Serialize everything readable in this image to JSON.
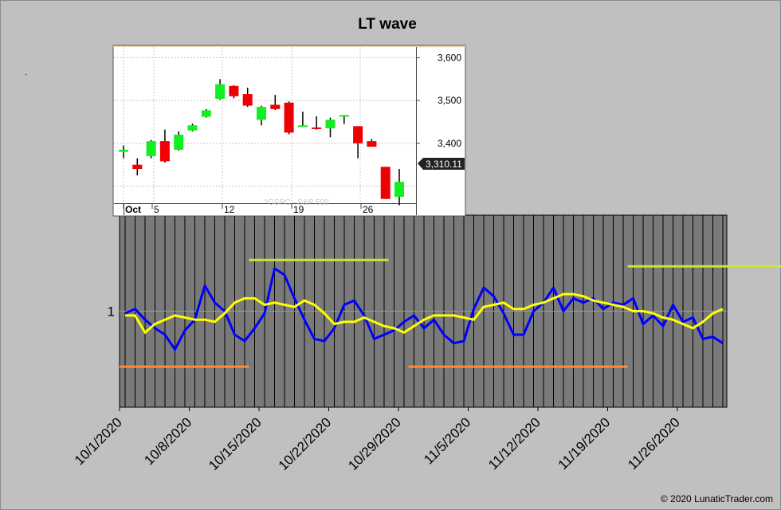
{
  "title": "LT wave",
  "copyright": "© 2020 LunaticTrader.com",
  "colors": {
    "background": "#c0c0c0",
    "plot_bg": "#7a7a7a",
    "wave": "#0000ff",
    "signal": "#ffff00",
    "upper_band": "#c8e632",
    "lower_band": "#ff8c32",
    "candle_up": "#11ee22",
    "candle_down": "#ee0000"
  },
  "chart_data": [
    {
      "type": "line",
      "title": "LT wave",
      "x_tick_labels": [
        "10/1/2020",
        "10/8/2020",
        "10/15/2020",
        "10/22/2020",
        "10/29/2020",
        "11/5/2020",
        "11/12/2020",
        "11/19/2020",
        "11/26/2020"
      ],
      "y_tick_labels": [
        "1"
      ],
      "reference_line": 1,
      "ylim": [
        0.55,
        1.45
      ],
      "series": [
        {
          "color": "#0000ff",
          "values": [
            0.99,
            1.01,
            0.96,
            0.92,
            0.89,
            0.82,
            0.91,
            0.96,
            1.12,
            1.04,
            1.0,
            0.89,
            0.86,
            0.92,
            0.99,
            1.2,
            1.17,
            1.06,
            0.96,
            0.87,
            0.86,
            0.92,
            1.03,
            1.05,
            0.98,
            0.87,
            0.89,
            0.91,
            0.95,
            0.98,
            0.92,
            0.96,
            0.89,
            0.85,
            0.86,
            1.01,
            1.11,
            1.07,
            0.99,
            0.89,
            0.89,
            1.0,
            1.04,
            1.11,
            1.0,
            1.06,
            1.04,
            1.06,
            1.01,
            1.04,
            1.03,
            1.06,
            0.94,
            0.98,
            0.93,
            1.03,
            0.95,
            0.97,
            0.87,
            0.88,
            0.85
          ]
        },
        {
          "color": "#ffff00",
          "values": [
            0.98,
            0.98,
            0.9,
            0.94,
            0.96,
            0.98,
            0.97,
            0.96,
            0.96,
            0.95,
            0.99,
            1.04,
            1.06,
            1.06,
            1.03,
            1.04,
            1.03,
            1.02,
            1.05,
            1.03,
            0.99,
            0.94,
            0.95,
            0.95,
            0.97,
            0.95,
            0.93,
            0.92,
            0.9,
            0.93,
            0.96,
            0.98,
            0.98,
            0.98,
            0.97,
            0.96,
            1.02,
            1.03,
            1.04,
            1.01,
            1.01,
            1.03,
            1.04,
            1.06,
            1.08,
            1.08,
            1.07,
            1.05,
            1.04,
            1.03,
            1.02,
            1.0,
            1.0,
            0.99,
            0.97,
            0.96,
            0.94,
            0.92,
            0.95,
            0.99,
            1.01
          ]
        }
      ],
      "bands": [
        {
          "color": "#c8e632",
          "level": 1.24,
          "from_index": 13,
          "to_index": 27
        },
        {
          "color": "#c8e632",
          "level": 1.21,
          "from_index": 51,
          "to_index": 72
        },
        {
          "color": "#ff8c32",
          "level": 0.74,
          "from_index": 0,
          "to_index": 13
        },
        {
          "color": "#ff8c32",
          "level": 0.74,
          "from_index": 29,
          "to_index": 51
        },
        {
          "color": "#ff8c32",
          "level": 0.74,
          "from_index": 74,
          "to_index": 87
        }
      ]
    },
    {
      "type": "candlestick",
      "watermark": "^GSPC - S&P 500",
      "x_tick_labels": [
        "Oct",
        "5",
        "12",
        "19",
        "26"
      ],
      "y_tick_labels": [
        "3,600",
        "3,500",
        "3,400"
      ],
      "last_price_label": "3,310.11",
      "ylim": [
        3260,
        3625
      ],
      "candles": [
        {
          "o": 3380,
          "h": 3395,
          "l": 3365,
          "c": 3385
        },
        {
          "o": 3350,
          "h": 3365,
          "l": 3325,
          "c": 3340
        },
        {
          "o": 3370,
          "h": 3408,
          "l": 3365,
          "c": 3405
        },
        {
          "o": 3405,
          "h": 3432,
          "l": 3355,
          "c": 3358
        },
        {
          "o": 3385,
          "h": 3428,
          "l": 3383,
          "c": 3420
        },
        {
          "o": 3430,
          "h": 3446,
          "l": 3428,
          "c": 3442
        },
        {
          "o": 3462,
          "h": 3480,
          "l": 3460,
          "c": 3477
        },
        {
          "o": 3504,
          "h": 3550,
          "l": 3502,
          "c": 3538
        },
        {
          "o": 3534,
          "h": 3536,
          "l": 3505,
          "c": 3510
        },
        {
          "o": 3515,
          "h": 3530,
          "l": 3485,
          "c": 3488
        },
        {
          "o": 3455,
          "h": 3488,
          "l": 3442,
          "c": 3485
        },
        {
          "o": 3490,
          "h": 3513,
          "l": 3478,
          "c": 3480
        },
        {
          "o": 3495,
          "h": 3498,
          "l": 3421,
          "c": 3425
        },
        {
          "o": 3438,
          "h": 3474,
          "l": 3438,
          "c": 3442
        },
        {
          "o": 3437,
          "h": 3463,
          "l": 3432,
          "c": 3436
        },
        {
          "o": 3435,
          "h": 3460,
          "l": 3414,
          "c": 3455
        },
        {
          "o": 3463,
          "h": 3466,
          "l": 3445,
          "c": 3466
        },
        {
          "o": 3440,
          "h": 3440,
          "l": 3365,
          "c": 3400
        },
        {
          "o": 3405,
          "h": 3410,
          "l": 3392,
          "c": 3392
        },
        {
          "o": 3345,
          "h": 3345,
          "l": 3270,
          "c": 3270
        },
        {
          "o": 3275,
          "h": 3340,
          "l": 3255,
          "c": 3310
        }
      ]
    }
  ]
}
